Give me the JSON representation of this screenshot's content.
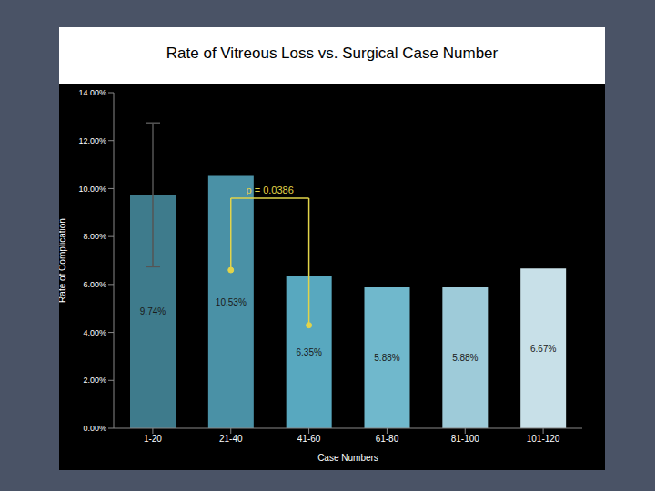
{
  "chart_data": {
    "type": "bar",
    "title": "Rate of Vitreous Loss vs. Surgical Case Number",
    "x_label": "Case Numbers",
    "y_label": "Rate of Complication",
    "categories": [
      "1-20",
      "21-40",
      "41-60",
      "61-80",
      "81-100",
      "101-120"
    ],
    "values": [
      9.74,
      10.53,
      6.35,
      5.88,
      5.88,
      6.67
    ],
    "value_labels": [
      "9.74%",
      "10.53%",
      "6.35%",
      "5.88%",
      "5.88%",
      "6.67%"
    ],
    "data_labels": true,
    "errors": [
      3.0,
      0,
      0,
      0,
      0,
      0
    ],
    "colors": [
      "#3e7b8c",
      "#4a91a6",
      "#58a8bf",
      "#70b8cc",
      "#9ecbd9",
      "#c8e0e8"
    ],
    "ylim": [
      0,
      14
    ],
    "yticks": [
      {
        "value": 0,
        "label": "0.00%"
      },
      {
        "value": 2,
        "label": "2.00%"
      },
      {
        "value": 4,
        "label": "4.00%"
      },
      {
        "value": 6,
        "label": "6.00%"
      },
      {
        "value": 8,
        "label": "8.00%"
      },
      {
        "value": 10,
        "label": "10.00%"
      },
      {
        "value": 12,
        "label": "12.00%"
      },
      {
        "value": 14,
        "label": "14.00%"
      }
    ],
    "grid": false,
    "bracket": {
      "text": "p = 0.0386",
      "from": "21-40",
      "to": "41-60",
      "top": 9.6,
      "from_end": 6.6,
      "to_end": 4.3
    }
  }
}
